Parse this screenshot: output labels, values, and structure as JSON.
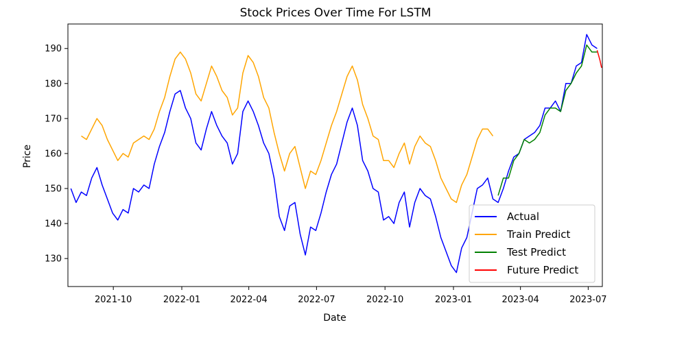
{
  "chart_data": {
    "type": "line",
    "title": "Stock Prices Over Time For LSTM",
    "xlabel": "Date",
    "ylabel": "Price",
    "xlim": [
      "2021-08-01",
      "2023-07-20"
    ],
    "ylim": [
      122,
      197
    ],
    "x_ticks": [
      "2021-10",
      "2022-01",
      "2022-04",
      "2022-07",
      "2022-10",
      "2023-01",
      "2023-04",
      "2023-07"
    ],
    "y_ticks": [
      130,
      140,
      150,
      160,
      170,
      180,
      190
    ],
    "grid": false,
    "legend_position": "lower-right",
    "series": [
      {
        "name": "Actual",
        "color": "#0000ff",
        "points": [
          [
            "2021-08-05",
            150
          ],
          [
            "2021-08-12",
            146
          ],
          [
            "2021-08-19",
            149
          ],
          [
            "2021-08-26",
            148
          ],
          [
            "2021-09-02",
            153
          ],
          [
            "2021-09-09",
            156
          ],
          [
            "2021-09-16",
            151
          ],
          [
            "2021-09-23",
            147
          ],
          [
            "2021-09-30",
            143
          ],
          [
            "2021-10-07",
            141
          ],
          [
            "2021-10-14",
            144
          ],
          [
            "2021-10-21",
            143
          ],
          [
            "2021-10-28",
            150
          ],
          [
            "2021-11-04",
            149
          ],
          [
            "2021-11-11",
            151
          ],
          [
            "2021-11-18",
            150
          ],
          [
            "2021-11-25",
            157
          ],
          [
            "2021-12-02",
            162
          ],
          [
            "2021-12-09",
            166
          ],
          [
            "2021-12-16",
            172
          ],
          [
            "2021-12-23",
            177
          ],
          [
            "2021-12-30",
            178
          ],
          [
            "2022-01-06",
            173
          ],
          [
            "2022-01-13",
            170
          ],
          [
            "2022-01-20",
            163
          ],
          [
            "2022-01-27",
            161
          ],
          [
            "2022-02-03",
            167
          ],
          [
            "2022-02-10",
            172
          ],
          [
            "2022-02-17",
            168
          ],
          [
            "2022-02-24",
            165
          ],
          [
            "2022-03-03",
            163
          ],
          [
            "2022-03-10",
            157
          ],
          [
            "2022-03-17",
            160
          ],
          [
            "2022-03-24",
            172
          ],
          [
            "2022-03-31",
            175
          ],
          [
            "2022-04-07",
            172
          ],
          [
            "2022-04-14",
            168
          ],
          [
            "2022-04-21",
            163
          ],
          [
            "2022-04-28",
            160
          ],
          [
            "2022-05-05",
            153
          ],
          [
            "2022-05-12",
            142
          ],
          [
            "2022-05-19",
            138
          ],
          [
            "2022-05-26",
            145
          ],
          [
            "2022-06-02",
            146
          ],
          [
            "2022-06-09",
            137
          ],
          [
            "2022-06-16",
            131
          ],
          [
            "2022-06-23",
            139
          ],
          [
            "2022-06-30",
            138
          ],
          [
            "2022-07-07",
            143
          ],
          [
            "2022-07-14",
            149
          ],
          [
            "2022-07-21",
            154
          ],
          [
            "2022-07-28",
            157
          ],
          [
            "2022-08-04",
            163
          ],
          [
            "2022-08-11",
            169
          ],
          [
            "2022-08-18",
            173
          ],
          [
            "2022-08-25",
            168
          ],
          [
            "2022-09-01",
            158
          ],
          [
            "2022-09-08",
            155
          ],
          [
            "2022-09-15",
            150
          ],
          [
            "2022-09-22",
            149
          ],
          [
            "2022-09-29",
            141
          ],
          [
            "2022-10-06",
            142
          ],
          [
            "2022-10-13",
            140
          ],
          [
            "2022-10-20",
            146
          ],
          [
            "2022-10-27",
            149
          ],
          [
            "2022-11-03",
            139
          ],
          [
            "2022-11-10",
            146
          ],
          [
            "2022-11-17",
            150
          ],
          [
            "2022-11-24",
            148
          ],
          [
            "2022-12-01",
            147
          ],
          [
            "2022-12-08",
            142
          ],
          [
            "2022-12-15",
            136
          ],
          [
            "2022-12-22",
            132
          ],
          [
            "2022-12-29",
            128
          ],
          [
            "2023-01-05",
            126
          ],
          [
            "2023-01-12",
            133
          ],
          [
            "2023-01-19",
            136
          ],
          [
            "2023-01-26",
            143
          ],
          [
            "2023-02-02",
            150
          ],
          [
            "2023-02-09",
            151
          ],
          [
            "2023-02-16",
            153
          ],
          [
            "2023-02-23",
            147
          ],
          [
            "2023-03-02",
            146
          ],
          [
            "2023-03-09",
            150
          ],
          [
            "2023-03-16",
            155
          ],
          [
            "2023-03-23",
            159
          ],
          [
            "2023-03-30",
            160
          ],
          [
            "2023-04-06",
            164
          ],
          [
            "2023-04-13",
            165
          ],
          [
            "2023-04-20",
            166
          ],
          [
            "2023-04-27",
            168
          ],
          [
            "2023-05-04",
            173
          ],
          [
            "2023-05-11",
            173
          ],
          [
            "2023-05-18",
            175
          ],
          [
            "2023-05-25",
            172
          ],
          [
            "2023-06-01",
            180
          ],
          [
            "2023-06-08",
            180
          ],
          [
            "2023-06-15",
            185
          ],
          [
            "2023-06-22",
            186
          ],
          [
            "2023-06-29",
            194
          ],
          [
            "2023-07-06",
            191
          ],
          [
            "2023-07-13",
            190
          ]
        ]
      },
      {
        "name": "Train Predict",
        "color": "#ffa500",
        "points": [
          [
            "2021-08-19",
            165
          ],
          [
            "2021-08-26",
            164
          ],
          [
            "2021-09-02",
            167
          ],
          [
            "2021-09-09",
            170
          ],
          [
            "2021-09-16",
            168
          ],
          [
            "2021-09-23",
            164
          ],
          [
            "2021-09-30",
            161
          ],
          [
            "2021-10-07",
            158
          ],
          [
            "2021-10-14",
            160
          ],
          [
            "2021-10-21",
            159
          ],
          [
            "2021-10-28",
            163
          ],
          [
            "2021-11-04",
            164
          ],
          [
            "2021-11-11",
            165
          ],
          [
            "2021-11-18",
            164
          ],
          [
            "2021-11-25",
            167
          ],
          [
            "2021-12-02",
            172
          ],
          [
            "2021-12-09",
            176
          ],
          [
            "2021-12-16",
            182
          ],
          [
            "2021-12-23",
            187
          ],
          [
            "2021-12-30",
            189
          ],
          [
            "2022-01-06",
            187
          ],
          [
            "2022-01-13",
            183
          ],
          [
            "2022-01-20",
            177
          ],
          [
            "2022-01-27",
            175
          ],
          [
            "2022-02-03",
            180
          ],
          [
            "2022-02-10",
            185
          ],
          [
            "2022-02-17",
            182
          ],
          [
            "2022-02-24",
            178
          ],
          [
            "2022-03-03",
            176
          ],
          [
            "2022-03-10",
            171
          ],
          [
            "2022-03-17",
            173
          ],
          [
            "2022-03-24",
            183
          ],
          [
            "2022-03-31",
            188
          ],
          [
            "2022-04-07",
            186
          ],
          [
            "2022-04-14",
            182
          ],
          [
            "2022-04-21",
            176
          ],
          [
            "2022-04-28",
            173
          ],
          [
            "2022-05-05",
            166
          ],
          [
            "2022-05-12",
            160
          ],
          [
            "2022-05-19",
            155
          ],
          [
            "2022-05-26",
            160
          ],
          [
            "2022-06-02",
            162
          ],
          [
            "2022-06-09",
            156
          ],
          [
            "2022-06-16",
            150
          ],
          [
            "2022-06-23",
            155
          ],
          [
            "2022-06-30",
            154
          ],
          [
            "2022-07-07",
            158
          ],
          [
            "2022-07-14",
            163
          ],
          [
            "2022-07-21",
            168
          ],
          [
            "2022-07-28",
            172
          ],
          [
            "2022-08-04",
            177
          ],
          [
            "2022-08-11",
            182
          ],
          [
            "2022-08-18",
            185
          ],
          [
            "2022-08-25",
            181
          ],
          [
            "2022-09-01",
            174
          ],
          [
            "2022-09-08",
            170
          ],
          [
            "2022-09-15",
            165
          ],
          [
            "2022-09-22",
            164
          ],
          [
            "2022-09-29",
            158
          ],
          [
            "2022-10-06",
            158
          ],
          [
            "2022-10-13",
            156
          ],
          [
            "2022-10-20",
            160
          ],
          [
            "2022-10-27",
            163
          ],
          [
            "2022-11-03",
            157
          ],
          [
            "2022-11-10",
            162
          ],
          [
            "2022-11-17",
            165
          ],
          [
            "2022-11-24",
            163
          ],
          [
            "2022-12-01",
            162
          ],
          [
            "2022-12-08",
            158
          ],
          [
            "2022-12-15",
            153
          ],
          [
            "2022-12-22",
            150
          ],
          [
            "2022-12-29",
            147
          ],
          [
            "2023-01-05",
            146
          ],
          [
            "2023-01-12",
            151
          ],
          [
            "2023-01-19",
            154
          ],
          [
            "2023-01-26",
            159
          ],
          [
            "2023-02-02",
            164
          ],
          [
            "2023-02-09",
            167
          ],
          [
            "2023-02-16",
            167
          ],
          [
            "2023-02-23",
            165
          ]
        ]
      },
      {
        "name": "Test Predict",
        "color": "#008000",
        "points": [
          [
            "2023-03-02",
            148
          ],
          [
            "2023-03-09",
            153
          ],
          [
            "2023-03-16",
            153
          ],
          [
            "2023-03-23",
            158
          ],
          [
            "2023-03-30",
            160
          ],
          [
            "2023-04-06",
            164
          ],
          [
            "2023-04-13",
            163
          ],
          [
            "2023-04-20",
            164
          ],
          [
            "2023-04-27",
            166
          ],
          [
            "2023-05-04",
            171
          ],
          [
            "2023-05-11",
            173
          ],
          [
            "2023-05-18",
            173
          ],
          [
            "2023-05-25",
            172
          ],
          [
            "2023-06-01",
            178
          ],
          [
            "2023-06-08",
            180
          ],
          [
            "2023-06-15",
            183
          ],
          [
            "2023-06-22",
            185
          ],
          [
            "2023-06-29",
            191
          ],
          [
            "2023-07-06",
            189
          ],
          [
            "2023-07-13",
            189
          ]
        ]
      },
      {
        "name": "Future Predict",
        "color": "#ff0000",
        "points": [
          [
            "2023-07-13",
            189.5
          ],
          [
            "2023-07-15",
            188
          ],
          [
            "2023-07-17",
            186.5
          ],
          [
            "2023-07-19",
            184.5
          ]
        ]
      }
    ]
  }
}
